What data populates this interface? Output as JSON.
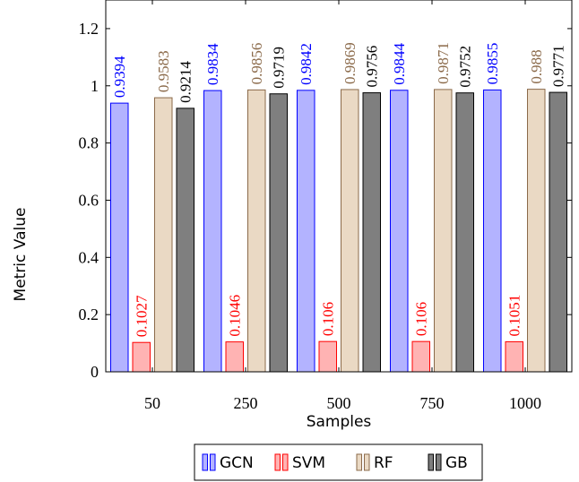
{
  "chart_data": {
    "type": "bar",
    "xlabel": "Samples",
    "ylabel": "Metric Value",
    "categories": [
      "50",
      "250",
      "500",
      "750",
      "1000"
    ],
    "ylim": [
      0,
      1.3
    ],
    "yticks": [
      0,
      0.2,
      0.4,
      0.6,
      0.8,
      1,
      1.2
    ],
    "grid": false,
    "legend_position": "bottom",
    "series": [
      {
        "name": "GCN",
        "values": [
          0.9394,
          0.9834,
          0.9842,
          0.9844,
          0.9855
        ],
        "labels": [
          "0.9394",
          "0.9834",
          "0.9842",
          "0.9844",
          "0.9855"
        ],
        "fill": "#b3b3ff",
        "stroke": "#0000ff",
        "label_color": "#0000ff"
      },
      {
        "name": "SVM",
        "values": [
          0.1027,
          0.1046,
          0.106,
          0.106,
          0.1051
        ],
        "labels": [
          "0.1027",
          "0.1046",
          "0.106",
          "0.106",
          "0.1051"
        ],
        "fill": "#ffb3b3",
        "stroke": "#ff0000",
        "label_color": "#ff0000"
      },
      {
        "name": "RF",
        "values": [
          0.9583,
          0.9856,
          0.9869,
          0.9871,
          0.988
        ],
        "labels": [
          "0.9583",
          "0.9856",
          "0.9869",
          "0.9871",
          "0.988"
        ],
        "fill": "#ead9c4",
        "stroke": "#8b6a4a",
        "label_color": "#8b6a4a"
      },
      {
        "name": "GB",
        "values": [
          0.9214,
          0.9719,
          0.9756,
          0.9752,
          0.9771
        ],
        "labels": [
          "0.9214",
          "0.9719",
          "0.9756",
          "0.9752",
          "0.9771"
        ],
        "fill": "#7f7f7f",
        "stroke": "#000000",
        "label_color": "#000000"
      }
    ]
  }
}
